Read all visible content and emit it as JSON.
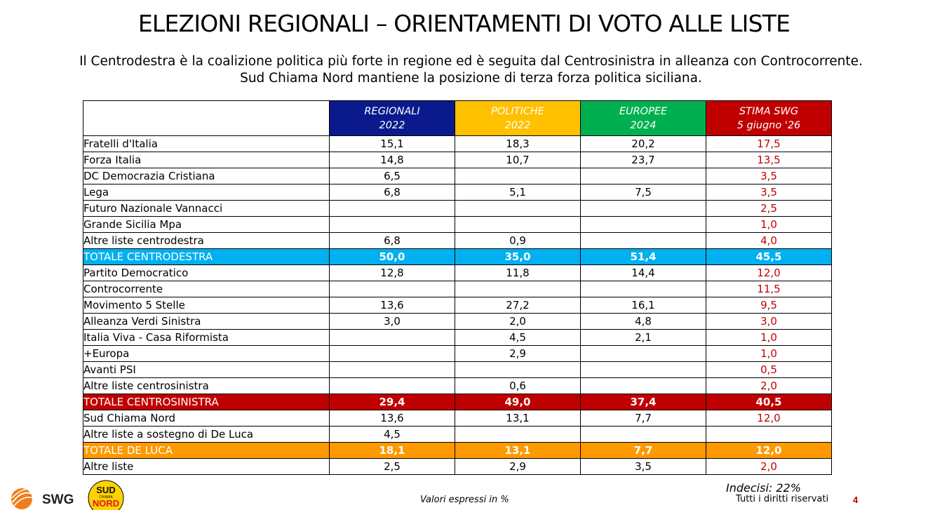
{
  "header": {
    "title": "ELEZIONI REGIONALI – ORIENTAMENTI DI VOTO ALLE LISTE",
    "subtitle_line1": "Il Centrodestra è la coalizione politica più forte in regione ed è seguita dal Centrosinistra in alleanza con Controcorrente.",
    "subtitle_line2": "Sud Chiama Nord mantiene la posizione di terza forza politica siciliana."
  },
  "colors": {
    "regionali": "#0a1a8c",
    "politiche": "#ffc000",
    "europee": "#00b050",
    "stima_swg": "#c00000",
    "totale_centrodestra": "#00b0f0",
    "totale_centrosinistra": "#c00000",
    "totale_de_luca": "#ff9900"
  },
  "columns": [
    {
      "line1": "REGIONALI",
      "line2": "2022"
    },
    {
      "line1": "POLITICHE",
      "line2": "2022"
    },
    {
      "line1": "EUROPEE",
      "line2": "2024"
    },
    {
      "line1": "STIMA SWG",
      "line2": "5 giugno '26"
    }
  ],
  "rows": [
    {
      "label": "Fratelli d'Italia",
      "values": [
        "15,1",
        "18,3",
        "20,2",
        "17,5"
      ],
      "type": "normal"
    },
    {
      "label": "Forza Italia",
      "values": [
        "14,8",
        "10,7",
        "23,7",
        "13,5"
      ],
      "type": "normal"
    },
    {
      "label": "DC Democrazia Cristiana",
      "values": [
        "6,5",
        "",
        "",
        "3,5"
      ],
      "type": "normal"
    },
    {
      "label": "Lega",
      "values": [
        "6,8",
        "5,1",
        "7,5",
        "3,5"
      ],
      "type": "normal"
    },
    {
      "label": "Futuro Nazionale Vannacci",
      "values": [
        "",
        "",
        "",
        "2,5"
      ],
      "type": "normal"
    },
    {
      "label": "Grande Sicilia Mpa",
      "values": [
        "",
        "",
        "",
        "1,0"
      ],
      "type": "normal"
    },
    {
      "label": "Altre liste centrodestra",
      "values": [
        "6,8",
        "0,9",
        "",
        "4,0"
      ],
      "type": "normal"
    },
    {
      "label": "TOTALE CENTRODESTRA",
      "values": [
        "50,0",
        "35,0",
        "51,4",
        "45,5"
      ],
      "type": "tot-cdx"
    },
    {
      "label": "Partito Democratico",
      "values": [
        "12,8",
        "11,8",
        "14,4",
        "12,0"
      ],
      "type": "normal"
    },
    {
      "label": "Controcorrente",
      "values": [
        "",
        "",
        "",
        "11,5"
      ],
      "type": "normal"
    },
    {
      "label": "Movimento 5 Stelle",
      "values": [
        "13,6",
        "27,2",
        "16,1",
        "9,5"
      ],
      "type": "normal"
    },
    {
      "label": "Alleanza Verdi Sinistra",
      "values": [
        "3,0",
        "2,0",
        "4,8",
        "3,0"
      ],
      "type": "normal"
    },
    {
      "label": "Italia Viva - Casa Riformista",
      "values": [
        "",
        "4,5",
        "2,1",
        "1,0"
      ],
      "type": "normal"
    },
    {
      "label": "+Europa",
      "values": [
        "",
        "2,9",
        "",
        "1,0"
      ],
      "type": "normal"
    },
    {
      "label": "Avanti PSI",
      "values": [
        "",
        "",
        "",
        "0,5"
      ],
      "type": "normal"
    },
    {
      "label": "Altre liste centrosinistra",
      "values": [
        "",
        "0,6",
        "",
        "2,0"
      ],
      "type": "normal"
    },
    {
      "label": "TOTALE CENTROSINISTRA",
      "values": [
        "29,4",
        "49,0",
        "37,4",
        "40,5"
      ],
      "type": "tot-csx"
    },
    {
      "label": "Sud Chiama Nord",
      "values": [
        "13,6",
        "13,1",
        "7,7",
        "12,0"
      ],
      "type": "normal"
    },
    {
      "label": "Altre liste a sostegno di De Luca",
      "values": [
        "4,5",
        "",
        "",
        ""
      ],
      "type": "normal"
    },
    {
      "label": "TOTALE DE LUCA",
      "values": [
        "18,1",
        "13,1",
        "7,7",
        "12,0"
      ],
      "type": "tot-dl"
    },
    {
      "label": "Altre liste",
      "values": [
        "2,5",
        "2,9",
        "3,5",
        "2,0"
      ],
      "type": "normal"
    }
  ],
  "footer": {
    "undecided": "Indecisi: 22%",
    "note": "Valori espressi in %",
    "rights": "Tutti i diritti riservati",
    "page": "4",
    "logo_swg": "SWG",
    "logo_snd_line1": "SUD",
    "logo_snd_line2": "CHIAMA",
    "logo_snd_line3": "NORD"
  }
}
